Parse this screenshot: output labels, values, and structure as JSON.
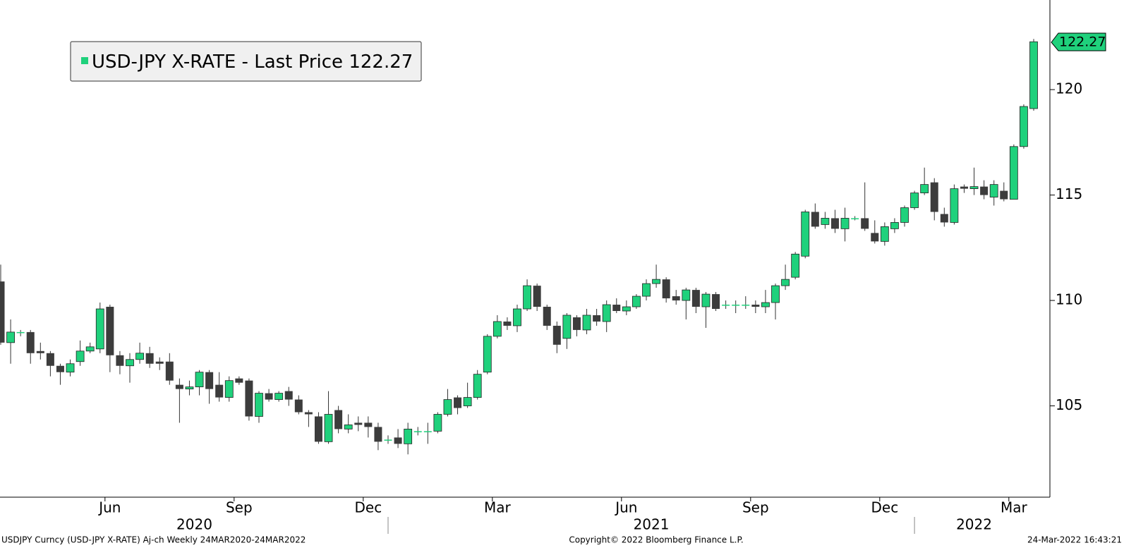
{
  "chart_data": {
    "type": "candlestick",
    "categories": [
      null,
      null,
      null,
      null,
      null,
      null,
      null,
      null,
      null,
      null,
      null,
      "Jun",
      null,
      null,
      null,
      null,
      null,
      null,
      null,
      null,
      null,
      null,
      null,
      null,
      "Sep",
      null,
      null,
      null,
      null,
      null,
      null,
      null,
      null,
      null,
      null,
      null,
      null,
      "Dec",
      null,
      null,
      null,
      null,
      null,
      null,
      null,
      null,
      null,
      null,
      null,
      null,
      "Mar",
      null,
      null,
      null,
      null,
      null,
      null,
      null,
      null,
      null,
      null,
      null,
      null,
      "Jun",
      null,
      null,
      null,
      null,
      null,
      null,
      null,
      null,
      null,
      null,
      null,
      null,
      "Sep",
      null,
      null,
      null,
      null,
      null,
      null,
      null,
      null,
      null,
      null,
      null,
      null,
      "Dec",
      null,
      null,
      null,
      null,
      null,
      null,
      null,
      null,
      null,
      null,
      null,
      null,
      "Mar",
      null,
      null
    ],
    "x_groups": [
      {
        "label": "2020",
        "from": 0,
        "to": 39
      },
      {
        "label": "2021",
        "from": 39,
        "to": 92
      },
      {
        "label": "2022",
        "from": 92,
        "to": 104
      }
    ],
    "series": [
      {
        "name": "USD-JPY X-RATE - Last Price",
        "up_color": "#1fd17c",
        "down_color": "#3c3c3c",
        "open": [
          110.9,
          108.0,
          108.5,
          108.5,
          107.6,
          107.5,
          106.9,
          106.6,
          107.1,
          107.6,
          107.7,
          109.7,
          107.4,
          106.9,
          107.2,
          107.5,
          107.1,
          107.1,
          106.0,
          105.8,
          105.9,
          106.6,
          106.0,
          105.4,
          106.3,
          106.2,
          104.5,
          105.6,
          105.3,
          105.7,
          105.3,
          104.7,
          104.5,
          103.3,
          104.8,
          103.9,
          104.2,
          104.2,
          104.0,
          103.4,
          103.5,
          103.2,
          103.8,
          103.8,
          103.8,
          104.6,
          105.4,
          105.0,
          105.4,
          106.6,
          108.3,
          109.0,
          108.8,
          109.6,
          110.7,
          109.7,
          108.8,
          108.2,
          109.2,
          108.6,
          109.3,
          109.0,
          109.8,
          109.5,
          109.7,
          110.2,
          110.8,
          111.0,
          110.2,
          110.0,
          110.5,
          109.7,
          110.3,
          109.8,
          109.8,
          109.8,
          109.8,
          109.7,
          109.9,
          110.7,
          111.1,
          112.1,
          114.2,
          113.6,
          113.9,
          113.4,
          113.9,
          113.9,
          113.2,
          112.8,
          113.4,
          113.7,
          114.4,
          115.1,
          115.6,
          114.1,
          113.7,
          115.4,
          115.3,
          115.4,
          114.9,
          115.2,
          114.8,
          117.3,
          119.1
        ],
        "high": [
          111.7,
          109.1,
          108.6,
          108.6,
          108.0,
          107.6,
          107.0,
          107.2,
          108.1,
          108.0,
          109.9,
          109.8,
          107.6,
          107.5,
          108.0,
          107.8,
          107.3,
          107.5,
          106.3,
          106.2,
          106.7,
          106.7,
          106.6,
          106.4,
          106.4,
          106.3,
          105.7,
          105.8,
          105.7,
          105.9,
          105.5,
          104.8,
          104.7,
          105.7,
          105.0,
          104.6,
          104.5,
          104.5,
          104.2,
          103.6,
          103.9,
          104.2,
          104.0,
          104.2,
          104.7,
          105.8,
          105.5,
          106.1,
          106.7,
          108.4,
          109.3,
          109.2,
          109.8,
          111.0,
          110.8,
          109.8,
          109.0,
          109.4,
          109.3,
          109.6,
          109.6,
          110.0,
          110.1,
          110.0,
          110.3,
          111.0,
          111.7,
          111.1,
          110.5,
          110.6,
          110.6,
          110.4,
          110.4,
          110.0,
          110.0,
          110.2,
          110.0,
          110.5,
          110.8,
          111.7,
          112.3,
          114.3,
          114.6,
          114.2,
          114.3,
          114.4,
          114.0,
          115.6,
          113.8,
          113.7,
          113.9,
          114.5,
          115.2,
          116.3,
          115.8,
          114.4,
          115.5,
          115.5,
          116.3,
          115.7,
          115.7,
          115.6,
          117.4,
          119.3,
          122.4
        ],
        "low": [
          107.9,
          107.0,
          108.3,
          107.0,
          107.2,
          106.4,
          106.0,
          106.4,
          106.9,
          107.5,
          107.5,
          106.6,
          106.5,
          106.1,
          107.0,
          106.8,
          106.7,
          106.0,
          104.2,
          105.5,
          105.5,
          105.1,
          105.2,
          105.2,
          106.0,
          104.3,
          104.2,
          105.2,
          105.2,
          105.0,
          104.6,
          104.0,
          103.2,
          103.2,
          103.7,
          103.7,
          103.8,
          103.5,
          102.9,
          103.2,
          103.0,
          102.7,
          103.6,
          103.2,
          103.7,
          104.5,
          104.6,
          104.9,
          105.3,
          106.5,
          108.2,
          108.6,
          108.5,
          109.5,
          109.5,
          108.6,
          107.5,
          107.7,
          108.3,
          108.4,
          108.8,
          108.5,
          109.4,
          109.3,
          109.6,
          110.0,
          110.6,
          109.9,
          109.8,
          109.1,
          109.4,
          108.7,
          109.5,
          109.6,
          109.4,
          109.6,
          109.4,
          109.4,
          109.1,
          110.5,
          111.0,
          112.0,
          113.4,
          113.4,
          113.2,
          112.8,
          113.8,
          113.3,
          112.7,
          112.6,
          113.2,
          113.5,
          114.3,
          115.0,
          113.8,
          113.5,
          113.6,
          115.1,
          115.0,
          114.8,
          114.5,
          114.7,
          114.8,
          117.2,
          119.0
        ],
        "close": [
          108.0,
          108.5,
          108.5,
          107.5,
          107.5,
          106.9,
          106.6,
          107.0,
          107.6,
          107.8,
          109.6,
          107.4,
          106.9,
          107.2,
          107.5,
          107.0,
          107.0,
          106.2,
          105.8,
          105.9,
          106.6,
          105.8,
          105.4,
          106.2,
          106.1,
          104.5,
          105.6,
          105.3,
          105.6,
          105.3,
          104.7,
          104.6,
          103.3,
          104.6,
          103.9,
          104.1,
          104.1,
          104.0,
          103.3,
          103.4,
          103.2,
          103.9,
          103.8,
          103.8,
          104.6,
          105.3,
          104.9,
          105.4,
          106.5,
          108.3,
          109.0,
          108.8,
          109.6,
          110.7,
          109.7,
          108.8,
          107.9,
          109.3,
          108.6,
          109.3,
          109.0,
          109.8,
          109.5,
          109.7,
          110.2,
          110.8,
          111.0,
          110.1,
          110.0,
          110.5,
          109.7,
          110.3,
          109.6,
          109.8,
          109.8,
          109.8,
          109.7,
          109.9,
          110.7,
          111.0,
          112.2,
          114.2,
          113.5,
          113.9,
          113.4,
          113.9,
          113.9,
          113.4,
          112.8,
          113.5,
          113.7,
          114.4,
          115.1,
          115.5,
          114.2,
          113.7,
          115.3,
          115.3,
          115.4,
          115.0,
          115.5,
          114.8,
          117.3,
          119.2,
          122.27
        ]
      }
    ],
    "ylim": [
      100.67,
      124.25
    ],
    "yticks": [
      105,
      110,
      115,
      120
    ],
    "grid": false,
    "legend_position": "upper-left",
    "footer": {
      "left": "USDJPY Curncy (USD-JPY X-RATE) Aj-ch  Weekly 24MAR2020-24MAR2022",
      "center": "Copyright© 2022 Bloomberg Finance L.P.",
      "right": "24-Mar-2022 16:43:21"
    }
  }
}
